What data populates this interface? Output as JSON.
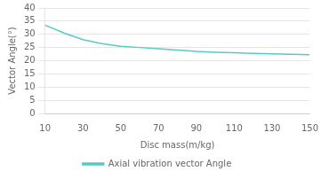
{
  "chart_data": {
    "type": "line",
    "x": [
      10,
      20,
      30,
      40,
      50,
      60,
      70,
      80,
      90,
      100,
      110,
      120,
      130,
      140,
      150
    ],
    "series": [
      {
        "name": "Axial vibration vector Angle",
        "color": "#5BC8C8",
        "values": [
          33.5,
          30.5,
          28.0,
          26.5,
          25.5,
          25.0,
          24.5,
          24.0,
          23.5,
          23.2,
          23.0,
          22.8,
          22.6,
          22.4,
          22.3
        ]
      }
    ],
    "xlabel": "Disc mass(m/kg)",
    "ylabel": "Vector Angle(°)",
    "xlim": [
      10,
      150
    ],
    "ylim": [
      0,
      40
    ],
    "xticks": [
      10,
      30,
      50,
      70,
      90,
      110,
      130,
      150
    ],
    "yticks": [
      0,
      5,
      10,
      15,
      20,
      25,
      30,
      35,
      40
    ],
    "grid": "y",
    "legend": "bottom"
  }
}
